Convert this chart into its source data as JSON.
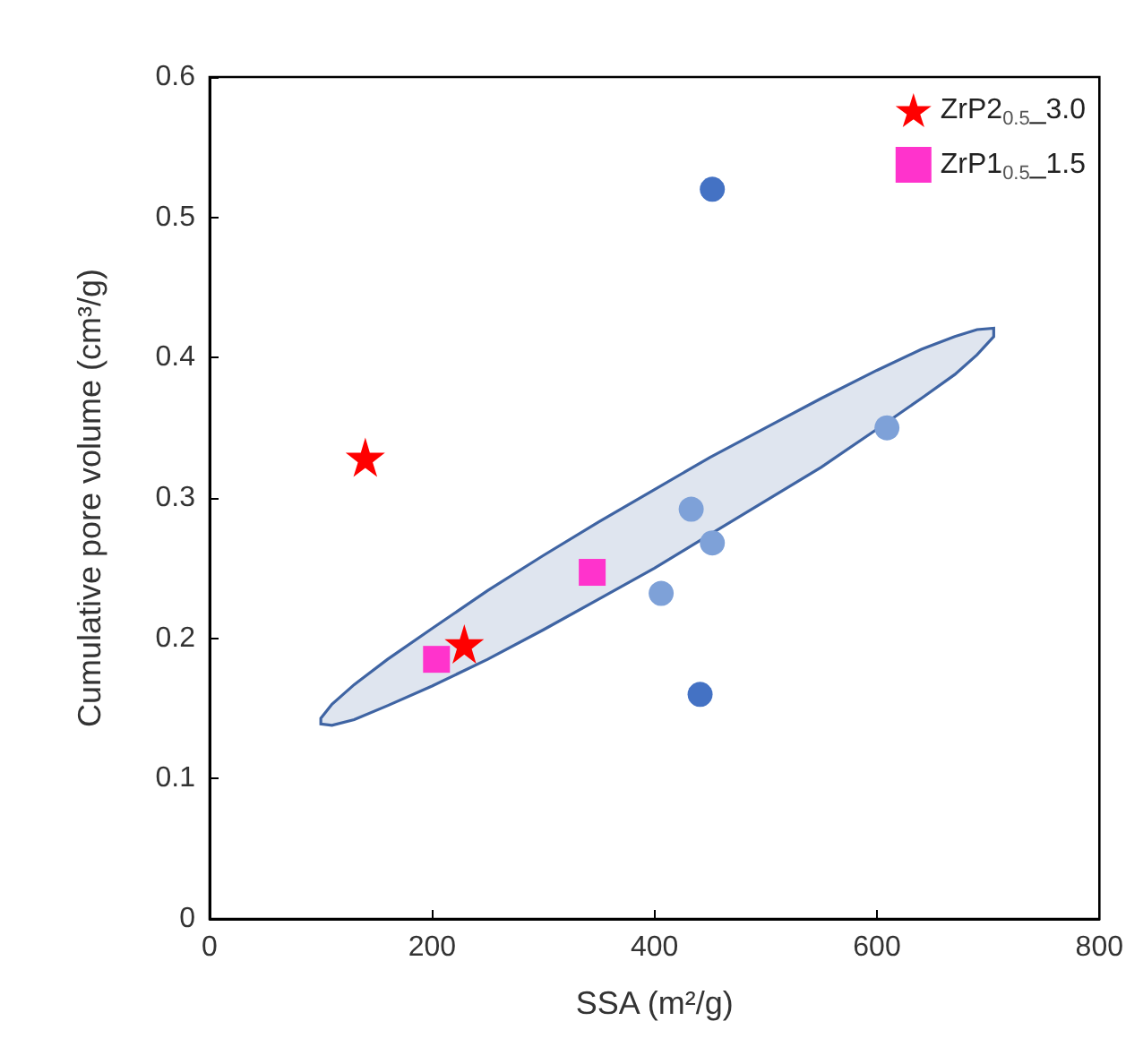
{
  "chart_data": {
    "type": "scatter",
    "xlabel": "SSA (m²/g)",
    "ylabel": "Cumulative pore volume (cm³/g)",
    "xlim": [
      0,
      800
    ],
    "xticks": [
      0,
      200,
      400,
      600,
      800
    ],
    "ylim": [
      0,
      0.6
    ],
    "yticks": [
      0,
      0.1,
      0.2,
      0.3,
      0.4,
      0.5,
      0.6
    ],
    "grid": false,
    "legend": "top right",
    "series": [
      {
        "type": "line",
        "color": "#3f64a3",
        "x": [
          100,
          110,
          130,
          160,
          200,
          250,
          300,
          350,
          400,
          450,
          500,
          550,
          600,
          640,
          670,
          690,
          705
        ],
        "values": [
          null,
          null,
          null,
          null,
          null,
          null,
          null,
          null,
          null,
          null,
          null,
          null,
          null,
          null,
          null,
          null,
          null
        ],
        "lower": [
          0.139,
          0.138,
          0.142,
          0.152,
          0.166,
          0.185,
          0.206,
          0.228,
          0.25,
          0.274,
          0.298,
          0.322,
          0.349,
          0.371,
          0.388,
          0.402,
          0.415
        ],
        "upper": [
          0.143,
          0.153,
          0.167,
          0.185,
          0.207,
          0.234,
          0.259,
          0.283,
          0.306,
          0.329,
          0.35,
          0.371,
          0.391,
          0.406,
          0.415,
          0.42,
          0.421
        ]
      },
      {
        "color": "#4472c4",
        "marker": "circle",
        "x": [
          452,
          441
        ],
        "values": [
          0.52,
          0.16
        ]
      },
      {
        "color": "#7ea1d8",
        "marker": "circle",
        "x": [
          609,
          433,
          452,
          406
        ],
        "values": [
          0.35,
          0.292,
          0.268,
          0.232
        ]
      },
      {
        "name": "ZrP2$_{0.5}$_3.0",
        "color": "#ff0000",
        "marker": "star",
        "x": [
          140,
          229
        ],
        "values": [
          0.329,
          0.196
        ]
      },
      {
        "name": "ZrP1$_{0.5}$_1.5",
        "color": "#ff33cc",
        "marker": "square",
        "x": [
          204,
          344
        ],
        "values": [
          0.185,
          0.247
        ]
      }
    ]
  }
}
